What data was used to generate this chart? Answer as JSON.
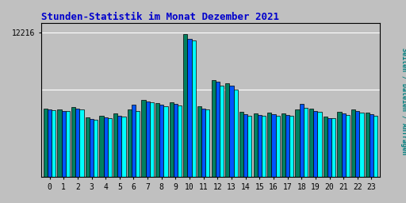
{
  "title": "Stunden-Statistik im Monat Dezember 2021",
  "title_color": "#0000cc",
  "ylabel": "Seiten / Dateien / Anfragen",
  "ylabel_color": "#008080",
  "xlabel_labels": [
    "0",
    "1",
    "2",
    "3",
    "4",
    "5",
    "6",
    "7",
    "8",
    "9",
    "10",
    "11",
    "12",
    "13",
    "14",
    "15",
    "16",
    "17",
    "18",
    "19",
    "20",
    "21",
    "22",
    "23"
  ],
  "ytick_label": "12216",
  "ytick_value": 12216,
  "background_color": "#c0c0c0",
  "plot_bg_color": "#c0c0c0",
  "bar_color_cyan": "#00ffff",
  "bar_color_teal": "#008060",
  "bar_color_blue": "#0055ff",
  "bar_edge_color": "#000000",
  "hours": [
    0,
    1,
    2,
    3,
    4,
    5,
    6,
    7,
    8,
    9,
    10,
    11,
    12,
    13,
    14,
    15,
    16,
    17,
    18,
    19,
    20,
    21,
    22,
    23
  ],
  "seiten": [
    5800,
    5700,
    5900,
    5050,
    5200,
    5350,
    5700,
    6500,
    6250,
    6350,
    12050,
    5950,
    8200,
    7900,
    5500,
    5400,
    5450,
    5400,
    5700,
    5750,
    5100,
    5500,
    5700,
    5450
  ],
  "dateien": [
    5700,
    5600,
    5780,
    4900,
    5050,
    5200,
    6100,
    6400,
    6100,
    6200,
    11700,
    5800,
    8050,
    7700,
    5300,
    5250,
    5300,
    5250,
    6200,
    5600,
    5000,
    5350,
    5550,
    5300
  ],
  "anfragen": [
    5650,
    5550,
    5700,
    4850,
    4980,
    5130,
    5550,
    6300,
    6000,
    6050,
    11550,
    5700,
    7700,
    7400,
    5200,
    5150,
    5200,
    5150,
    5850,
    5500,
    4950,
    5250,
    5450,
    5200
  ],
  "ylim_max": 13000,
  "grid_line1": 12216,
  "grid_line2": 7400
}
